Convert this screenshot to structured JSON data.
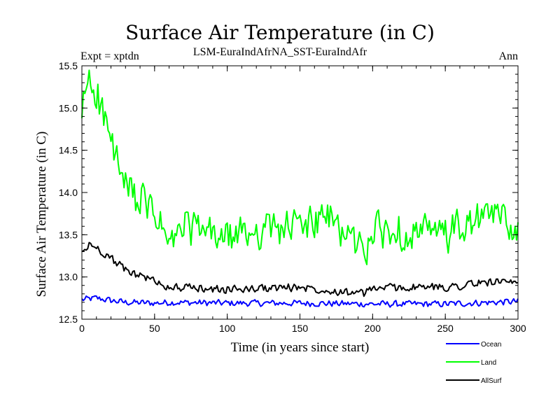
{
  "chart_data": {
    "type": "line",
    "title": "Surface Air Temperature (in C)",
    "experiment": "Expt = xptdn",
    "run_name": "LSM-EuraIndAfrNA_SST-EuraIndAfr",
    "period": "Ann",
    "xlabel": "Time (in years since start)",
    "ylabel": "Surface Air Temperature (in C)",
    "xlim": [
      0,
      300
    ],
    "ylim": [
      12.5,
      15.5
    ],
    "x_ticks": [
      "0",
      "50",
      "100",
      "150",
      "200",
      "250",
      "300"
    ],
    "y_ticks": [
      "12.5",
      "13.0",
      "13.5",
      "14.0",
      "14.5",
      "15.0",
      "15.5"
    ],
    "series": [
      {
        "name": "Ocean",
        "color": "#0000ff",
        "anchors": [
          [
            0,
            12.73
          ],
          [
            10,
            12.75
          ],
          [
            20,
            12.72
          ],
          [
            30,
            12.7
          ],
          [
            50,
            12.69
          ],
          [
            60,
            12.7
          ],
          [
            100,
            12.69
          ],
          [
            150,
            12.69
          ],
          [
            200,
            12.68
          ],
          [
            250,
            12.68
          ],
          [
            300,
            12.71
          ]
        ],
        "noise_amplitude": 0.035
      },
      {
        "name": "Land",
        "color": "#00ff00",
        "anchors": [
          [
            0,
            14.8
          ],
          [
            2,
            15.2
          ],
          [
            5,
            15.35
          ],
          [
            10,
            15.2
          ],
          [
            15,
            14.9
          ],
          [
            20,
            14.6
          ],
          [
            25,
            14.3
          ],
          [
            30,
            14.05
          ],
          [
            40,
            13.9
          ],
          [
            50,
            13.75
          ],
          [
            57,
            13.5
          ],
          [
            60,
            13.35
          ],
          [
            70,
            13.6
          ],
          [
            100,
            13.45
          ],
          [
            120,
            13.55
          ],
          [
            150,
            13.6
          ],
          [
            170,
            13.7
          ],
          [
            195,
            13.3
          ],
          [
            200,
            13.55
          ],
          [
            250,
            13.5
          ],
          [
            285,
            13.75
          ],
          [
            300,
            13.55
          ]
        ],
        "noise_amplitude": 0.2
      },
      {
        "name": "AllSurf",
        "color": "#000000",
        "anchors": [
          [
            0,
            13.28
          ],
          [
            5,
            13.38
          ],
          [
            10,
            13.35
          ],
          [
            20,
            13.22
          ],
          [
            30,
            13.08
          ],
          [
            40,
            13.02
          ],
          [
            50,
            12.95
          ],
          [
            60,
            12.88
          ],
          [
            100,
            12.85
          ],
          [
            150,
            12.88
          ],
          [
            195,
            12.8
          ],
          [
            200,
            12.87
          ],
          [
            250,
            12.88
          ],
          [
            285,
            12.95
          ],
          [
            300,
            12.9
          ]
        ],
        "noise_amplitude": 0.045
      }
    ],
    "legend_position": "bottom-right"
  }
}
